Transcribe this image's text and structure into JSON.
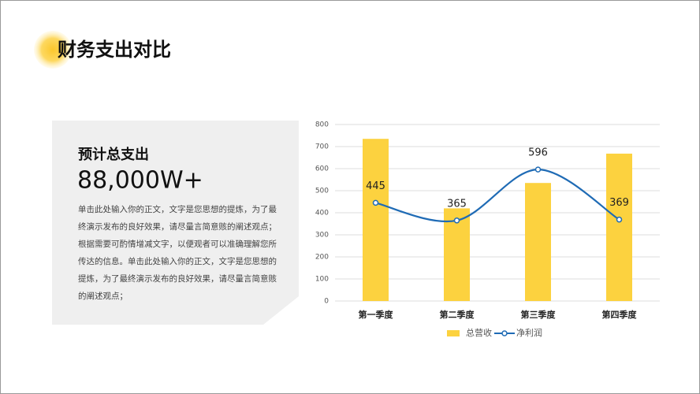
{
  "title": "财务支出对比",
  "card": {
    "heading": "预计总支出",
    "value": "88,000W+",
    "body": "单击此处输入你的正文，文字是您思想的提炼，为了最终演示发布的良好效果，请尽量言简意赅的阐述观点；根据需要可酌情增减文字，以便观者可以准确理解您所传达的信息。单击此处输入你的正文，文字是您思想的提炼，为了最终演示发布的良好效果，请尽量言简意赅的阐述观点；"
  },
  "chart_data": {
    "type": "bar",
    "categories": [
      "第一季度",
      "第二季度",
      "第三季度",
      "第四季度"
    ],
    "series": [
      {
        "name": "总营收",
        "type": "bar",
        "color": "#fcd23f",
        "values": [
          735,
          420,
          535,
          668
        ]
      },
      {
        "name": "净利润",
        "type": "line",
        "color": "#1f6bb5",
        "values": [
          445,
          365,
          596,
          369
        ]
      }
    ],
    "ylim": [
      0,
      800
    ],
    "yticks": [
      0,
      100,
      200,
      300,
      400,
      500,
      600,
      700,
      800
    ],
    "grid": true,
    "legend": "bottom"
  }
}
